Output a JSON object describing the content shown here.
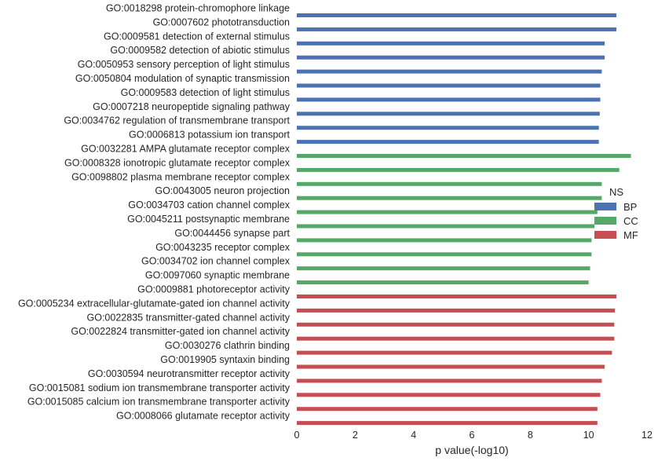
{
  "chart_data": {
    "type": "bar",
    "orientation": "horizontal",
    "xlabel": "p value(-log10)",
    "ylabel": "",
    "xlim": [
      0,
      12
    ],
    "xticks": [
      0,
      2,
      4,
      6,
      8,
      10,
      12
    ],
    "grid": false,
    "legend": {
      "title": "NS",
      "placement": "center-right",
      "entries": [
        {
          "name": "BP",
          "color": "#4C72B0"
        },
        {
          "name": "CC",
          "color": "#55A868"
        },
        {
          "name": "MF",
          "color": "#C44E52"
        }
      ]
    },
    "bars": [
      {
        "label": "GO:0018298 protein-chromophore linkage",
        "value": 10.95,
        "group": "BP"
      },
      {
        "label": "GO:0007602 phototransduction",
        "value": 10.95,
        "group": "BP"
      },
      {
        "label": "GO:0009581 detection of external stimulus",
        "value": 10.55,
        "group": "BP"
      },
      {
        "label": "GO:0009582 detection of abiotic stimulus",
        "value": 10.55,
        "group": "BP"
      },
      {
        "label": "GO:0050953 sensory perception of light stimulus",
        "value": 10.45,
        "group": "BP"
      },
      {
        "label": "GO:0050804 modulation of synaptic transmission",
        "value": 10.4,
        "group": "BP"
      },
      {
        "label": "GO:0009583 detection of light stimulus",
        "value": 10.4,
        "group": "BP"
      },
      {
        "label": "GO:0007218 neuropeptide signaling pathway",
        "value": 10.38,
        "group": "BP"
      },
      {
        "label": "GO:0034762 regulation of transmembrane transport",
        "value": 10.35,
        "group": "BP"
      },
      {
        "label": "GO:0006813 potassium ion transport",
        "value": 10.35,
        "group": "BP"
      },
      {
        "label": "GO:0032281 AMPA glutamate receptor complex",
        "value": 11.45,
        "group": "CC"
      },
      {
        "label": "GO:0008328 ionotropic glutamate receptor complex",
        "value": 11.05,
        "group": "CC"
      },
      {
        "label": "GO:0098802 plasma membrane receptor complex",
        "value": 10.45,
        "group": "CC"
      },
      {
        "label": "GO:0043005 neuron projection",
        "value": 10.45,
        "group": "CC"
      },
      {
        "label": "GO:0034703 cation channel complex",
        "value": 10.3,
        "group": "CC"
      },
      {
        "label": "GO:0045211 postsynaptic membrane",
        "value": 10.2,
        "group": "CC"
      },
      {
        "label": "GO:0044456 synapse part",
        "value": 10.1,
        "group": "CC"
      },
      {
        "label": "GO:0043235 receptor complex",
        "value": 10.1,
        "group": "CC"
      },
      {
        "label": "GO:0034702 ion channel complex",
        "value": 10.05,
        "group": "CC"
      },
      {
        "label": "GO:0097060 synaptic membrane",
        "value": 10.0,
        "group": "CC"
      },
      {
        "label": "GO:0009881 photoreceptor activity",
        "value": 10.95,
        "group": "MF"
      },
      {
        "label": "GO:0005234 extracellular-glutamate-gated ion channel activity",
        "value": 10.9,
        "group": "MF"
      },
      {
        "label": "GO:0022835 transmitter-gated channel activity",
        "value": 10.88,
        "group": "MF"
      },
      {
        "label": "GO:0022824 transmitter-gated ion channel activity",
        "value": 10.88,
        "group": "MF"
      },
      {
        "label": "GO:0030276 clathrin binding",
        "value": 10.8,
        "group": "MF"
      },
      {
        "label": "GO:0019905 syntaxin binding",
        "value": 10.55,
        "group": "MF"
      },
      {
        "label": "GO:0030594 neurotransmitter receptor activity",
        "value": 10.45,
        "group": "MF"
      },
      {
        "label": "GO:0015081 sodium ion transmembrane transporter activity",
        "value": 10.4,
        "group": "MF"
      },
      {
        "label": "GO:0015085 calcium ion transmembrane transporter activity",
        "value": 10.3,
        "group": "MF"
      },
      {
        "label": "GO:0008066 glutamate receptor activity",
        "value": 10.3,
        "group": "MF"
      }
    ]
  }
}
